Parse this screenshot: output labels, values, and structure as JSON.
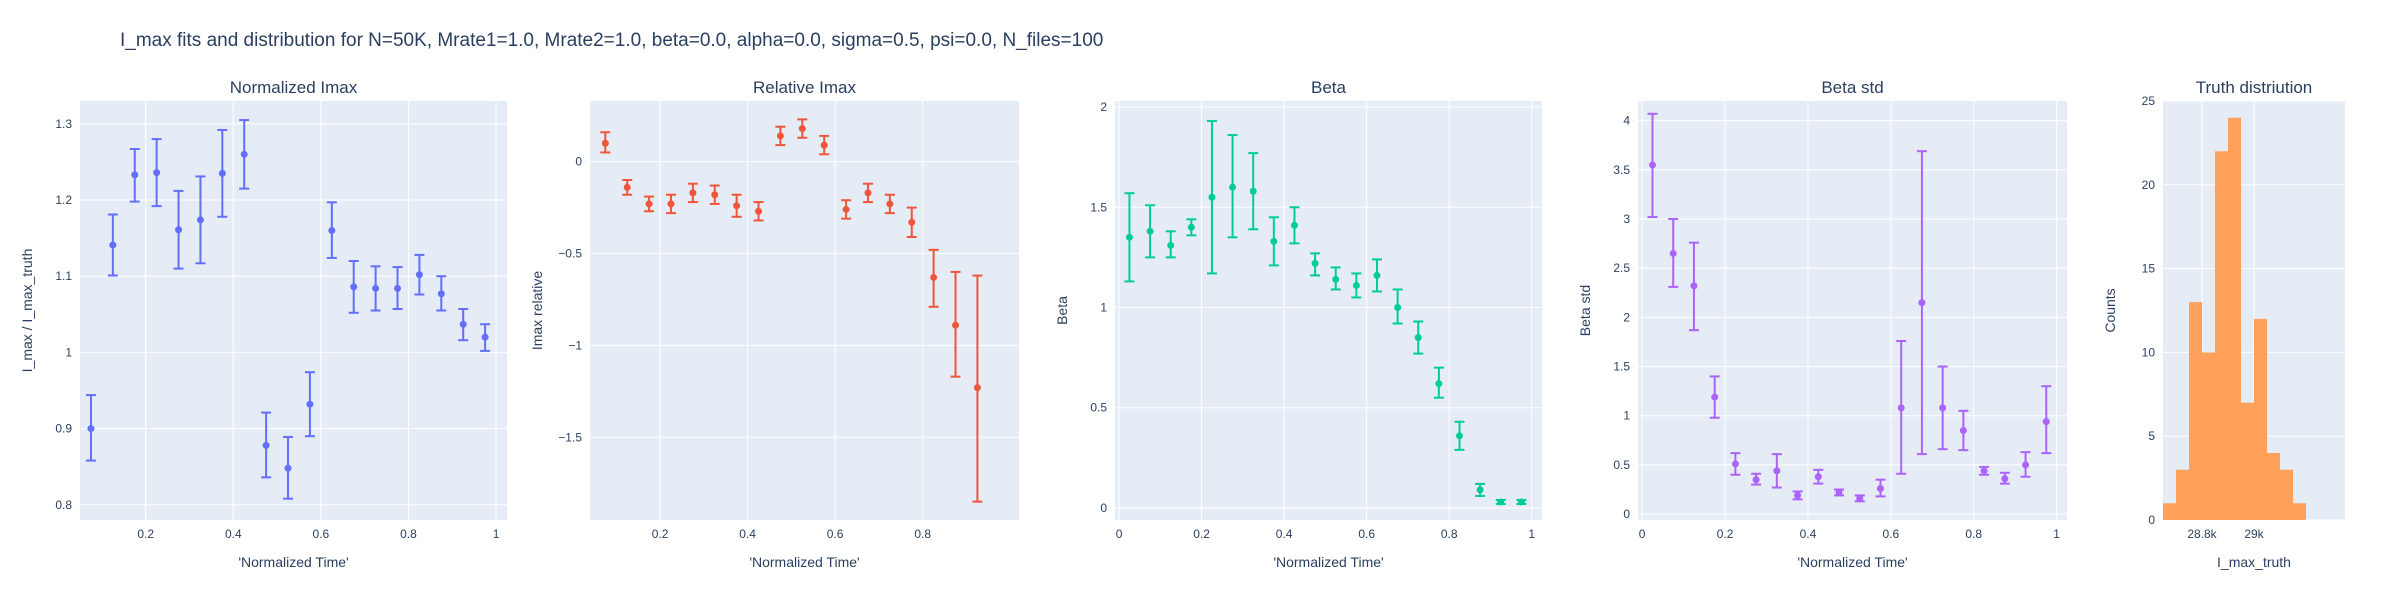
{
  "title": "I_max fits and distribution for N=50K, Mrate1=1.0, Mrate2=1.0, beta=0.0, alpha=0.0, sigma=0.5,  psi=0.0, N_files=100",
  "chart_data": [
    {
      "type": "scatter",
      "title": "Normalized Imax",
      "xlabel": "'Normalized Time'",
      "ylabel": "I_max / I_max_truth",
      "color": "#636efa",
      "xlim": [
        0.05,
        1.025
      ],
      "ylim": [
        0.78,
        1.33
      ],
      "xticks": [
        0.2,
        0.4,
        0.6,
        0.8,
        1
      ],
      "xtick_labels": [
        "0.2",
        "0.4",
        "0.6",
        "0.8",
        "1"
      ],
      "yticks": [
        0.8,
        0.9,
        1.0,
        1.1,
        1.2,
        1.3
      ],
      "ytick_labels": [
        "0.8",
        "0.9",
        "1",
        "1.1",
        "1.2",
        "1.3"
      ],
      "points": [
        {
          "x": 0.075,
          "y": 0.9,
          "lo": 0.858,
          "hi": 0.944
        },
        {
          "x": 0.125,
          "y": 1.141,
          "lo": 1.101,
          "hi": 1.181
        },
        {
          "x": 0.175,
          "y": 1.233,
          "lo": 1.198,
          "hi": 1.267
        },
        {
          "x": 0.225,
          "y": 1.236,
          "lo": 1.192,
          "hi": 1.28
        },
        {
          "x": 0.275,
          "y": 1.161,
          "lo": 1.11,
          "hi": 1.212
        },
        {
          "x": 0.325,
          "y": 1.174,
          "lo": 1.117,
          "hi": 1.231
        },
        {
          "x": 0.375,
          "y": 1.235,
          "lo": 1.178,
          "hi": 1.292
        },
        {
          "x": 0.425,
          "y": 1.26,
          "lo": 1.215,
          "hi": 1.305
        },
        {
          "x": 0.475,
          "y": 0.878,
          "lo": 0.836,
          "hi": 0.921
        },
        {
          "x": 0.525,
          "y": 0.848,
          "lo": 0.808,
          "hi": 0.889
        },
        {
          "x": 0.575,
          "y": 0.932,
          "lo": 0.89,
          "hi": 0.974
        },
        {
          "x": 0.625,
          "y": 1.16,
          "lo": 1.124,
          "hi": 1.197
        },
        {
          "x": 0.675,
          "y": 1.086,
          "lo": 1.052,
          "hi": 1.12
        },
        {
          "x": 0.725,
          "y": 1.084,
          "lo": 1.055,
          "hi": 1.113
        },
        {
          "x": 0.775,
          "y": 1.084,
          "lo": 1.057,
          "hi": 1.112
        },
        {
          "x": 0.825,
          "y": 1.102,
          "lo": 1.076,
          "hi": 1.128
        },
        {
          "x": 0.875,
          "y": 1.077,
          "lo": 1.055,
          "hi": 1.1
        },
        {
          "x": 0.925,
          "y": 1.037,
          "lo": 1.016,
          "hi": 1.057
        },
        {
          "x": 0.975,
          "y": 1.02,
          "lo": 1.002,
          "hi": 1.037
        }
      ]
    },
    {
      "type": "scatter",
      "title": "Relative Imax",
      "xlabel": "'Normalized Time'",
      "ylabel": "Imax relative",
      "color": "#ef553b",
      "xlim": [
        0.04,
        1.02
      ],
      "ylim": [
        -1.95,
        0.33
      ],
      "xticks": [
        0.2,
        0.4,
        0.6,
        0.8
      ],
      "xtick_labels": [
        "0.2",
        "0.4",
        "0.6",
        "0.8"
      ],
      "yticks": [
        0,
        -0.5,
        -1,
        -1.5
      ],
      "ytick_labels": [
        "0",
        "−0.5",
        "−1",
        "−1.5"
      ],
      "points": [
        {
          "x": 0.075,
          "y": 0.1,
          "lo": 0.05,
          "hi": 0.16
        },
        {
          "x": 0.125,
          "y": -0.14,
          "lo": -0.18,
          "hi": -0.1
        },
        {
          "x": 0.175,
          "y": -0.23,
          "lo": -0.27,
          "hi": -0.19
        },
        {
          "x": 0.225,
          "y": -0.23,
          "lo": -0.28,
          "hi": -0.18
        },
        {
          "x": 0.275,
          "y": -0.17,
          "lo": -0.22,
          "hi": -0.12
        },
        {
          "x": 0.325,
          "y": -0.18,
          "lo": -0.23,
          "hi": -0.13
        },
        {
          "x": 0.375,
          "y": -0.24,
          "lo": -0.3,
          "hi": -0.18
        },
        {
          "x": 0.425,
          "y": -0.27,
          "lo": -0.32,
          "hi": -0.22
        },
        {
          "x": 0.475,
          "y": 0.14,
          "lo": 0.09,
          "hi": 0.19
        },
        {
          "x": 0.525,
          "y": 0.18,
          "lo": 0.13,
          "hi": 0.23
        },
        {
          "x": 0.575,
          "y": 0.09,
          "lo": 0.04,
          "hi": 0.14
        },
        {
          "x": 0.625,
          "y": -0.26,
          "lo": -0.31,
          "hi": -0.21
        },
        {
          "x": 0.675,
          "y": -0.17,
          "lo": -0.22,
          "hi": -0.12
        },
        {
          "x": 0.725,
          "y": -0.23,
          "lo": -0.28,
          "hi": -0.18
        },
        {
          "x": 0.775,
          "y": -0.33,
          "lo": -0.41,
          "hi": -0.25
        },
        {
          "x": 0.825,
          "y": -0.63,
          "lo": -0.79,
          "hi": -0.48
        },
        {
          "x": 0.875,
          "y": -0.89,
          "lo": -1.17,
          "hi": -0.6
        },
        {
          "x": 0.925,
          "y": -1.23,
          "lo": -1.85,
          "hi": -0.62
        }
      ]
    },
    {
      "type": "scatter",
      "title": "Beta",
      "xlabel": "'Normalized Time'",
      "ylabel": "Beta",
      "color": "#00cc96",
      "xlim": [
        -0.01,
        1.025
      ],
      "ylim": [
        -0.06,
        2.03
      ],
      "xticks": [
        0,
        0.2,
        0.4,
        0.6,
        0.8,
        1
      ],
      "xtick_labels": [
        "0",
        "0.2",
        "0.4",
        "0.6",
        "0.8",
        "1"
      ],
      "yticks": [
        0,
        0.5,
        1,
        1.5,
        2
      ],
      "ytick_labels": [
        "0",
        "0.5",
        "1",
        "1.5",
        "2"
      ],
      "points": [
        {
          "x": 0.025,
          "y": 1.35,
          "lo": 1.13,
          "hi": 1.57
        },
        {
          "x": 0.075,
          "y": 1.38,
          "lo": 1.25,
          "hi": 1.51
        },
        {
          "x": 0.125,
          "y": 1.31,
          "lo": 1.25,
          "hi": 1.38
        },
        {
          "x": 0.175,
          "y": 1.4,
          "lo": 1.36,
          "hi": 1.44
        },
        {
          "x": 0.225,
          "y": 1.55,
          "lo": 1.17,
          "hi": 1.93
        },
        {
          "x": 0.275,
          "y": 1.6,
          "lo": 1.35,
          "hi": 1.86
        },
        {
          "x": 0.325,
          "y": 1.58,
          "lo": 1.39,
          "hi": 1.77
        },
        {
          "x": 0.375,
          "y": 1.33,
          "lo": 1.21,
          "hi": 1.45
        },
        {
          "x": 0.425,
          "y": 1.41,
          "lo": 1.32,
          "hi": 1.5
        },
        {
          "x": 0.475,
          "y": 1.22,
          "lo": 1.16,
          "hi": 1.27
        },
        {
          "x": 0.525,
          "y": 1.14,
          "lo": 1.09,
          "hi": 1.2
        },
        {
          "x": 0.575,
          "y": 1.11,
          "lo": 1.05,
          "hi": 1.17
        },
        {
          "x": 0.625,
          "y": 1.16,
          "lo": 1.08,
          "hi": 1.24
        },
        {
          "x": 0.675,
          "y": 1.0,
          "lo": 0.92,
          "hi": 1.09
        },
        {
          "x": 0.725,
          "y": 0.85,
          "lo": 0.77,
          "hi": 0.93
        },
        {
          "x": 0.775,
          "y": 0.62,
          "lo": 0.55,
          "hi": 0.7
        },
        {
          "x": 0.825,
          "y": 0.36,
          "lo": 0.29,
          "hi": 0.43
        },
        {
          "x": 0.875,
          "y": 0.09,
          "lo": 0.06,
          "hi": 0.12
        },
        {
          "x": 0.925,
          "y": 0.03,
          "lo": 0.02,
          "hi": 0.04
        },
        {
          "x": 0.975,
          "y": 0.03,
          "lo": 0.02,
          "hi": 0.04
        }
      ]
    },
    {
      "type": "scatter",
      "title": "Beta std",
      "xlabel": "'Normalized Time'",
      "ylabel": "Beta std",
      "color": "#ab63fa",
      "xlim": [
        -0.01,
        1.025
      ],
      "ylim": [
        -0.06,
        4.2
      ],
      "xticks": [
        0,
        0.2,
        0.4,
        0.6,
        0.8,
        1
      ],
      "xtick_labels": [
        "0",
        "0.2",
        "0.4",
        "0.6",
        "0.8",
        "1"
      ],
      "yticks": [
        0,
        0.5,
        1,
        1.5,
        2,
        2.5,
        3,
        3.5,
        4
      ],
      "ytick_labels": [
        "0",
        "0.5",
        "1",
        "1.5",
        "2",
        "2.5",
        "3",
        "3.5",
        "4"
      ],
      "points": [
        {
          "x": 0.025,
          "y": 3.55,
          "lo": 3.02,
          "hi": 4.07
        },
        {
          "x": 0.075,
          "y": 2.65,
          "lo": 2.31,
          "hi": 3.0
        },
        {
          "x": 0.125,
          "y": 2.32,
          "lo": 1.87,
          "hi": 2.76
        },
        {
          "x": 0.175,
          "y": 1.19,
          "lo": 0.98,
          "hi": 1.4
        },
        {
          "x": 0.225,
          "y": 0.51,
          "lo": 0.4,
          "hi": 0.62
        },
        {
          "x": 0.275,
          "y": 0.35,
          "lo": 0.3,
          "hi": 0.41
        },
        {
          "x": 0.325,
          "y": 0.44,
          "lo": 0.27,
          "hi": 0.61
        },
        {
          "x": 0.375,
          "y": 0.19,
          "lo": 0.15,
          "hi": 0.23
        },
        {
          "x": 0.425,
          "y": 0.38,
          "lo": 0.31,
          "hi": 0.45
        },
        {
          "x": 0.475,
          "y": 0.22,
          "lo": 0.19,
          "hi": 0.25
        },
        {
          "x": 0.525,
          "y": 0.16,
          "lo": 0.13,
          "hi": 0.19
        },
        {
          "x": 0.575,
          "y": 0.26,
          "lo": 0.18,
          "hi": 0.35
        },
        {
          "x": 0.625,
          "y": 1.08,
          "lo": 0.41,
          "hi": 1.76
        },
        {
          "x": 0.675,
          "y": 2.15,
          "lo": 0.61,
          "hi": 3.69
        },
        {
          "x": 0.725,
          "y": 1.08,
          "lo": 0.66,
          "hi": 1.5
        },
        {
          "x": 0.775,
          "y": 0.85,
          "lo": 0.65,
          "hi": 1.05
        },
        {
          "x": 0.825,
          "y": 0.44,
          "lo": 0.4,
          "hi": 0.48
        },
        {
          "x": 0.875,
          "y": 0.36,
          "lo": 0.31,
          "hi": 0.42
        },
        {
          "x": 0.925,
          "y": 0.5,
          "lo": 0.38,
          "hi": 0.63
        },
        {
          "x": 0.975,
          "y": 0.94,
          "lo": 0.62,
          "hi": 1.3
        }
      ]
    },
    {
      "type": "bar",
      "title": "Truth distriution",
      "xlabel": "I_max_truth",
      "ylabel": "Counts",
      "color": "#ffa15a",
      "xlim": [
        28650,
        29350
      ],
      "ylim": [
        0,
        25
      ],
      "bin_start": 28650,
      "bin_width": 50,
      "values": [
        1,
        3,
        13,
        10,
        22,
        24,
        7,
        12,
        4,
        3,
        1
      ],
      "xticks": [
        28800,
        29000
      ],
      "xtick_labels": [
        "28.8k",
        "29k"
      ],
      "yticks": [
        0,
        5,
        10,
        15,
        20,
        25
      ],
      "ytick_labels": [
        "0",
        "5",
        "10",
        "15",
        "20",
        "25"
      ]
    }
  ]
}
